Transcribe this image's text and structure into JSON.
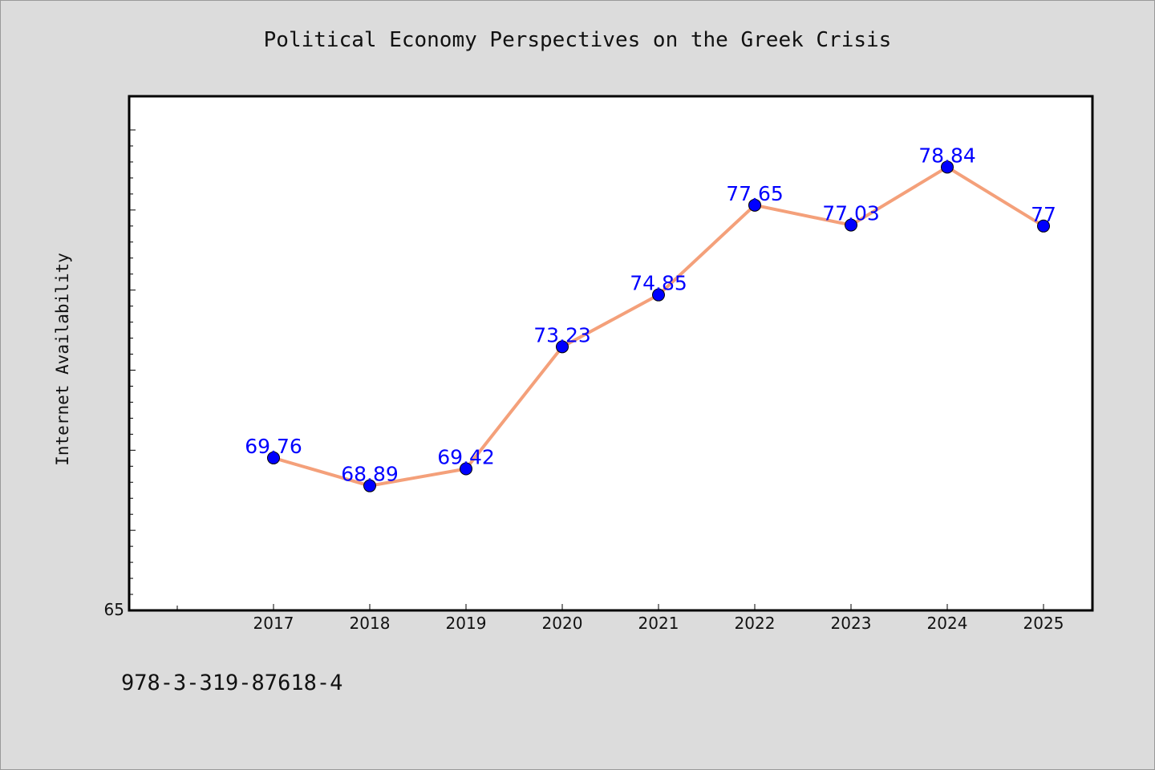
{
  "chart_data": {
    "type": "line",
    "title": "Political Economy Perspectives on the Greek Crisis",
    "xlabel": "",
    "ylabel": "Internet Availability",
    "categories": [
      "2017",
      "2018",
      "2019",
      "2020",
      "2021",
      "2022",
      "2023",
      "2024",
      "2025"
    ],
    "series": [
      {
        "values": [
          69.76,
          68.89,
          69.42,
          73.23,
          74.85,
          77.65,
          77.03,
          78.84,
          77
        ],
        "data_labels": [
          "69.76",
          "68.89",
          "69.42",
          "73.23",
          "74.85",
          "77.65",
          "77.03",
          "78.84",
          "77"
        ]
      }
    ],
    "y_tick_labels": [
      "65"
    ],
    "ylim": [
      65,
      80
    ],
    "grid": false,
    "line_color": "#f4a07a",
    "marker_color": "#0000ff",
    "label_color": "#0000ff"
  },
  "footer": {
    "isbn": "978-3-319-87618-4"
  }
}
